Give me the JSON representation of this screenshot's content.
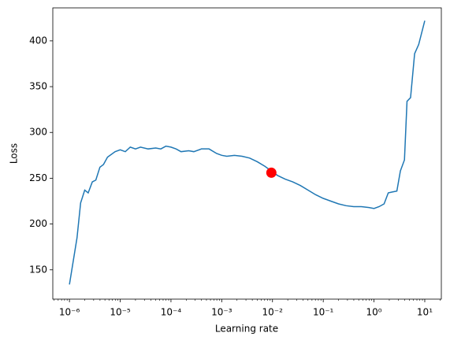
{
  "chart_data": {
    "type": "line",
    "xlabel": "Learning rate",
    "ylabel": "Loss",
    "xscale": "log",
    "xlim": [
      4.7e-07,
      21.2
    ],
    "ylim": [
      118,
      436
    ],
    "xticks": [
      {
        "value": 1e-06,
        "label": "10⁻⁶"
      },
      {
        "value": 1e-05,
        "label": "10⁻⁵"
      },
      {
        "value": 0.0001,
        "label": "10⁻⁴"
      },
      {
        "value": 0.001,
        "label": "10⁻³"
      },
      {
        "value": 0.01,
        "label": "10⁻²"
      },
      {
        "value": 0.1,
        "label": "10⁻¹"
      },
      {
        "value": 1,
        "label": "10⁰"
      },
      {
        "value": 10,
        "label": "10¹"
      }
    ],
    "yticks": [
      150,
      200,
      250,
      300,
      350,
      400
    ],
    "series": [
      {
        "color": "#1f77b4",
        "x": [
          1e-06,
          1.41e-06,
          1.66e-06,
          2e-06,
          2.34e-06,
          2.82e-06,
          3.31e-06,
          3.98e-06,
          4.68e-06,
          5.62e-06,
          7.94e-06,
          1e-05,
          1.26e-05,
          1.58e-05,
          2e-05,
          2.51e-05,
          3.55e-05,
          5.01e-05,
          6.31e-05,
          7.94e-05,
          0.0001,
          0.000126,
          0.000158,
          0.000224,
          0.000282,
          0.000398,
          0.000562,
          0.000794,
          0.001,
          0.00126,
          0.00178,
          0.00251,
          0.00355,
          0.00501,
          0.00708,
          0.01,
          0.0126,
          0.0178,
          0.0251,
          0.0355,
          0.0501,
          0.0708,
          0.1,
          0.141,
          0.2,
          0.282,
          0.398,
          0.562,
          0.794,
          1,
          1.26,
          1.58,
          1.91,
          2.29,
          2.82,
          3.31,
          3.98,
          4.47,
          5.25,
          6.31,
          7.59,
          10
        ],
        "values": [
          134,
          185,
          223,
          237,
          234,
          246,
          248,
          262,
          265,
          273,
          279,
          281,
          279,
          284,
          282,
          284,
          282,
          283,
          282,
          285,
          284,
          282,
          279,
          280,
          279,
          282,
          282,
          277,
          275,
          274,
          275,
          274,
          272,
          268,
          263,
          257,
          253,
          249,
          246,
          242,
          237,
          232,
          228,
          225,
          222,
          220,
          219,
          219,
          218,
          217,
          219,
          222,
          234,
          235,
          236,
          258,
          270,
          334,
          338,
          386,
          396,
          422
        ]
      }
    ],
    "marker": {
      "color": "#ff0000",
      "x": 0.0095,
      "y": 256
    }
  }
}
